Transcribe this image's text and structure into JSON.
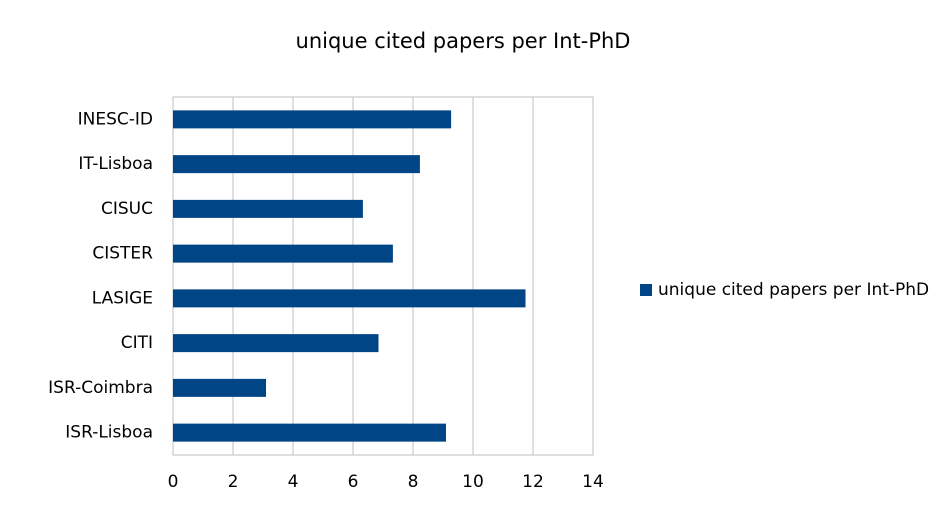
{
  "chart_data": {
    "type": "bar",
    "orientation": "horizontal",
    "title": "unique cited papers per Int-PhD",
    "categories": [
      "INESC-ID",
      "IT-Lisboa",
      "CISUC",
      "CISTER",
      "LASIGE",
      "CITI",
      "ISR-Coimbra",
      "ISR-Lisboa"
    ],
    "series": [
      {
        "name": "unique cited papers per Int-PhD",
        "color": "#004586",
        "values": [
          9.27,
          8.23,
          6.33,
          7.33,
          11.75,
          6.85,
          3.1,
          9.1
        ]
      }
    ],
    "xlim": [
      0,
      14
    ],
    "xticks": [
      0,
      2,
      4,
      6,
      8,
      10,
      12,
      14
    ],
    "grid": true,
    "legend": "right"
  }
}
